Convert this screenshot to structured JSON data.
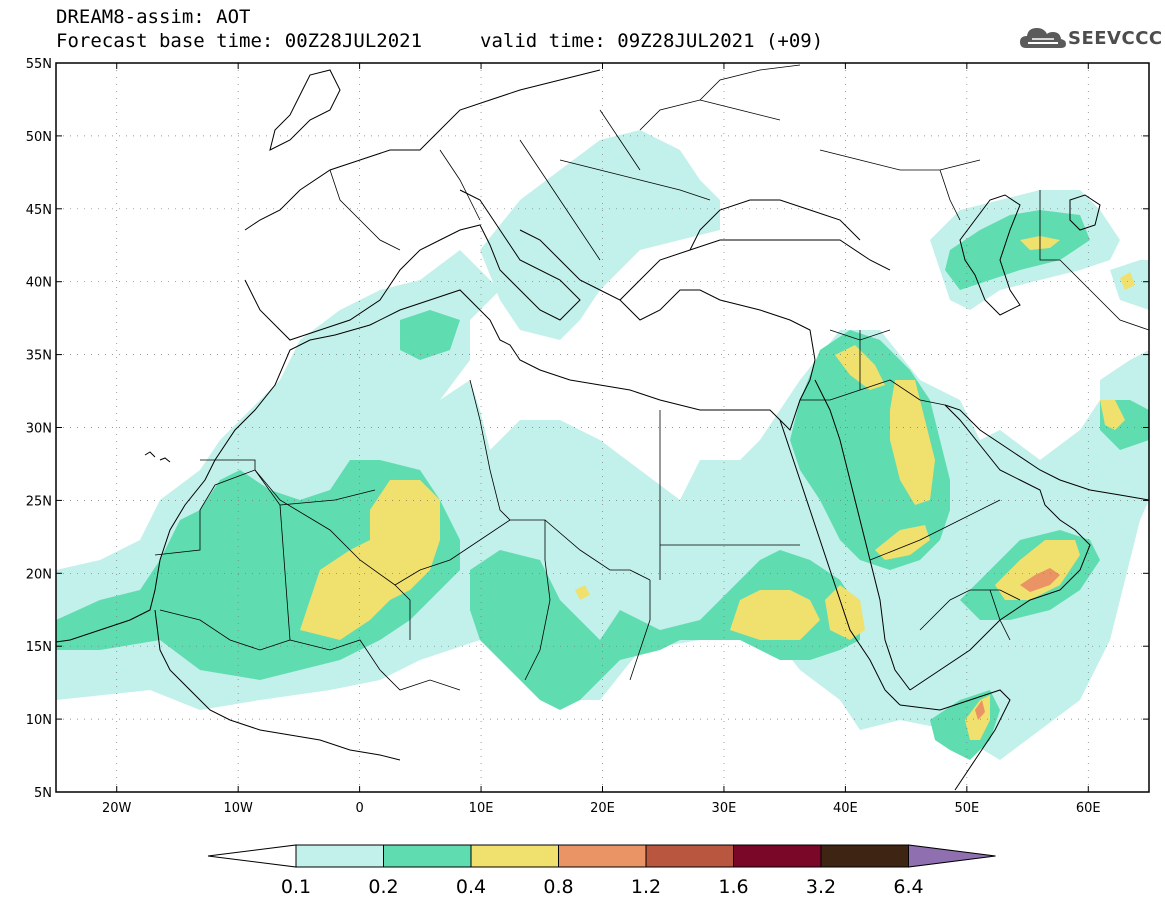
{
  "title": {
    "line1": "DREAM8-assim: AOT",
    "line2": "Forecast base time: 00Z28JUL2021",
    "valid": "valid time: 09Z28JUL2021 (+09)"
  },
  "logo": {
    "text": "SEEVCCC",
    "icon": "cloud-icon"
  },
  "map": {
    "lon_range": [
      -25,
      65
    ],
    "lat_range": [
      5,
      55
    ],
    "lat_ticks": [
      "55N",
      "50N",
      "45N",
      "40N",
      "35N",
      "30N",
      "25N",
      "20N",
      "15N",
      "10N",
      "5N"
    ],
    "lon_ticks": [
      "20W",
      "10W",
      "0",
      "10E",
      "20E",
      "30E",
      "40E",
      "50E",
      "60E"
    ],
    "grid": "dotted"
  },
  "colorbar": {
    "labels": [
      "0.1",
      "0.2",
      "0.4",
      "0.8",
      "1.2",
      "1.6",
      "3.2",
      "6.4"
    ],
    "colors": [
      "#c2f0ea",
      "#5fdcb0",
      "#f0e06e",
      "#ea9364",
      "#b85640",
      "#7a0628",
      "#3d2413",
      "#8f6fb0"
    ],
    "under_color": "#ffffff"
  },
  "colors": {
    "low": "#c2f0ea",
    "mid": "#5fdcb0",
    "high": "#f0e06e",
    "veryhigh": "#ea9364",
    "extreme": "#c96a55"
  }
}
